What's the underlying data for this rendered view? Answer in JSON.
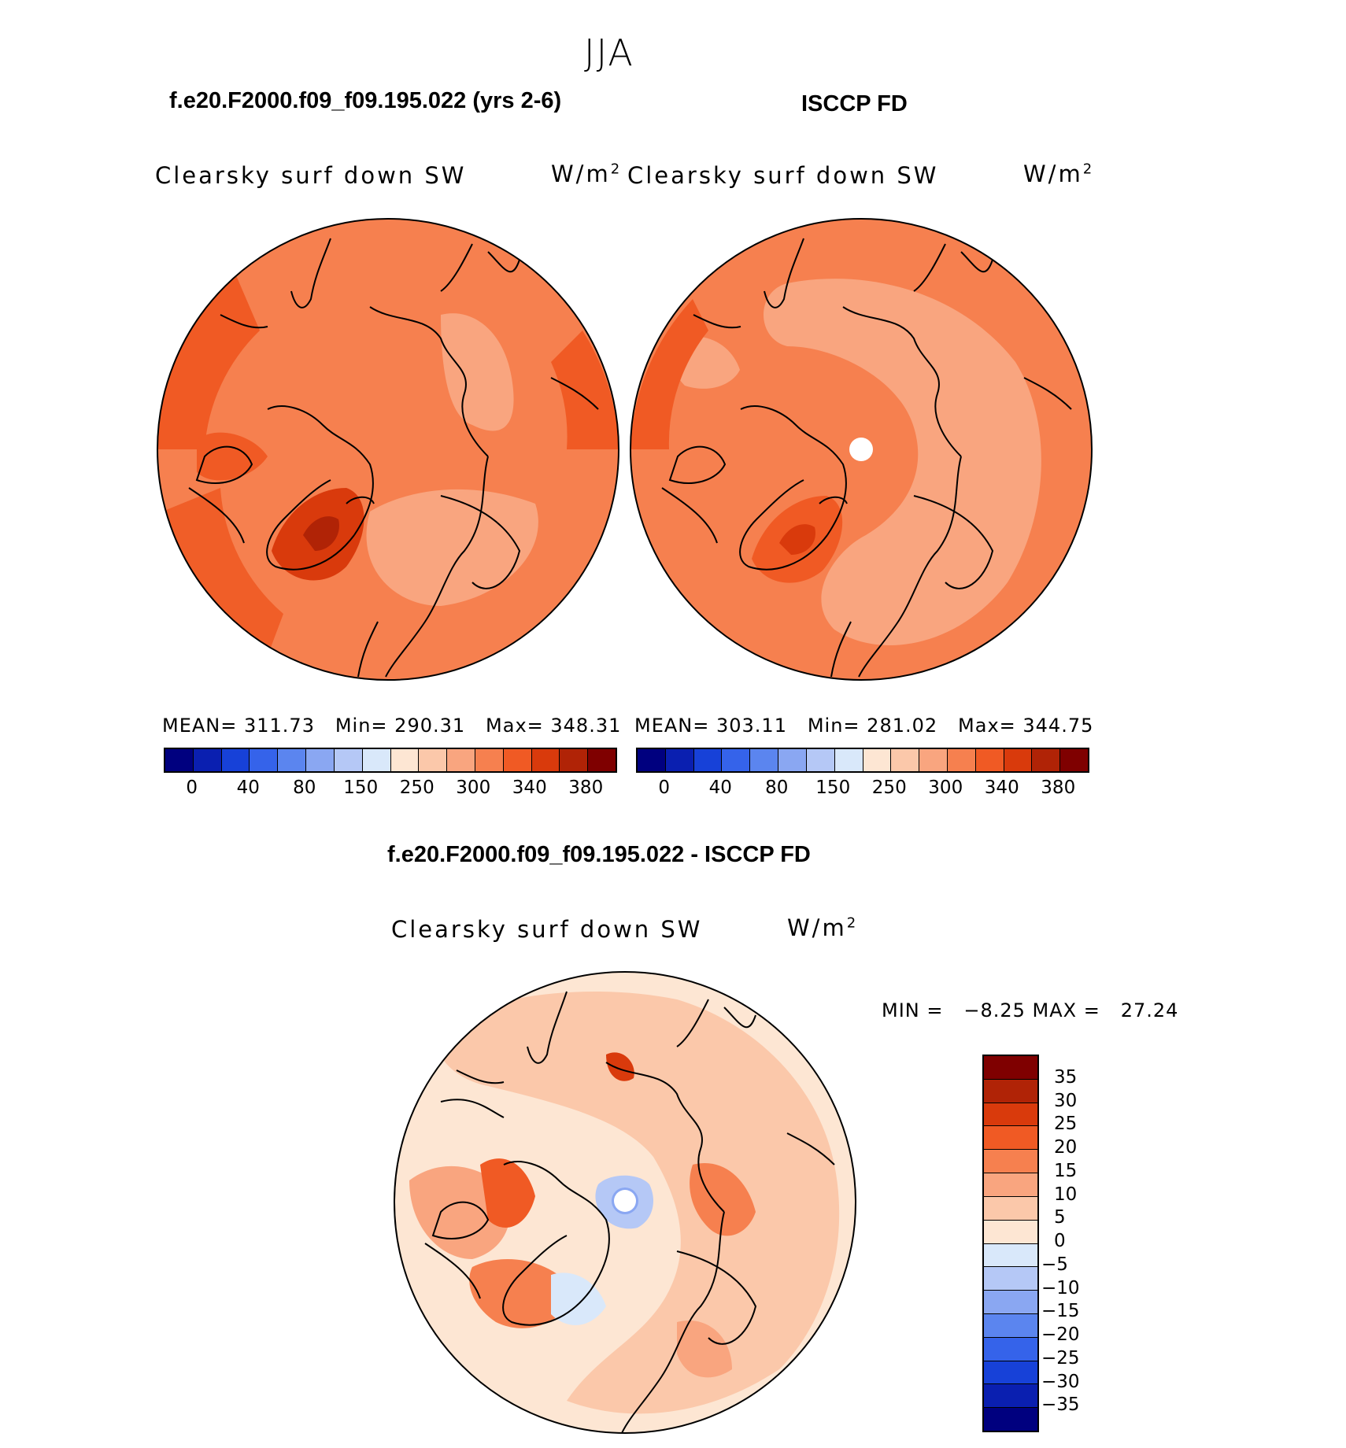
{
  "season_title": "JJA",
  "panels": {
    "model": {
      "title": "f.e20.F2000.f09_f09.195.022 (yrs 2-6)",
      "variable": "Clearsky surf down SW",
      "units_base": "W/m",
      "units_exp": "2",
      "stats": "MEAN= 311.73   Min= 290.31   Max= 348.31"
    },
    "obs": {
      "title": "ISCCP FD",
      "variable": "Clearsky surf down SW",
      "units_base": "W/m",
      "units_exp": "2",
      "stats": "MEAN= 303.11   Min= 281.02   Max= 344.75"
    },
    "diff": {
      "title": "f.e20.F2000.f09_f09.195.022 - ISCCP FD",
      "variable": "Clearsky surf down SW",
      "units_base": "W/m",
      "units_exp": "2",
      "stats": "MIN =   −8.25 MAX =   27.24"
    }
  },
  "colorbar_abs": {
    "ticks": [
      "0",
      "40",
      "80",
      "150",
      "250",
      "300",
      "340",
      "380"
    ],
    "colors": [
      "#00007f",
      "#0a1fb0",
      "#1741d8",
      "#3563ea",
      "#5b85ef",
      "#8aa7f2",
      "#b5c8f6",
      "#d9e8fa",
      "#fde6d3",
      "#fbc8aa",
      "#f9a57f",
      "#f6804f",
      "#f05a24",
      "#d93a0c",
      "#b02306",
      "#7f0000"
    ]
  },
  "colorbar_diff": {
    "labels": [
      "35",
      "30",
      "25",
      "20",
      "15",
      "10",
      "5",
      "0",
      "−5",
      "−10",
      "−15",
      "−20",
      "−25",
      "−30",
      "−35"
    ],
    "colors": [
      "#7f0000",
      "#b02306",
      "#d93a0c",
      "#f05a24",
      "#f6804f",
      "#f9a57f",
      "#fbc8aa",
      "#fde6d3",
      "#d9e8fa",
      "#b5c8f6",
      "#8aa7f2",
      "#5b85ef",
      "#3563ea",
      "#1741d8",
      "#0a1fb0",
      "#00007f"
    ]
  }
}
